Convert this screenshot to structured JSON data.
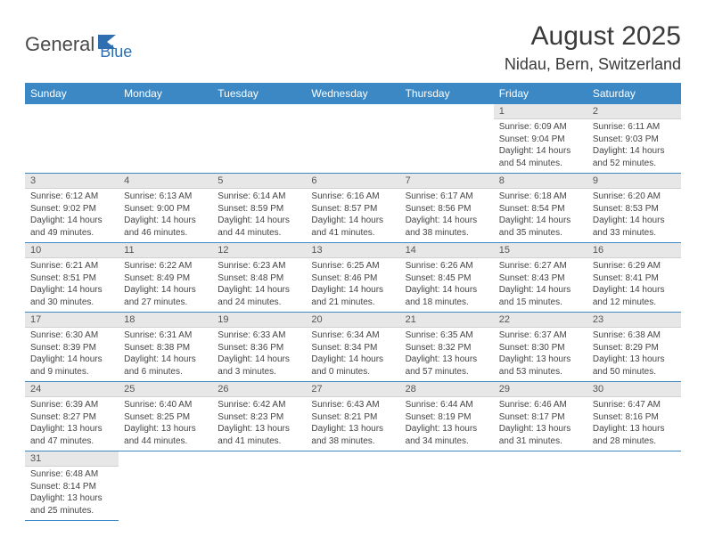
{
  "brand": {
    "part1": "General",
    "part2": "Blue"
  },
  "title": {
    "month": "August 2025",
    "location": "Nidau, Bern, Switzerland"
  },
  "colors": {
    "header_bg": "#3b88c5",
    "header_text": "#ffffff",
    "daynum_bg": "#e7e7e7",
    "rule": "#3b88c5",
    "text": "#3a3a3a",
    "logo_blue": "#2f6fb0"
  },
  "day_labels": [
    "Sunday",
    "Monday",
    "Tuesday",
    "Wednesday",
    "Thursday",
    "Friday",
    "Saturday"
  ],
  "weeks": [
    [
      null,
      null,
      null,
      null,
      null,
      {
        "n": "1",
        "sunrise": "6:09 AM",
        "sunset": "9:04 PM",
        "day_h": "14",
        "day_m": "54"
      },
      {
        "n": "2",
        "sunrise": "6:11 AM",
        "sunset": "9:03 PM",
        "day_h": "14",
        "day_m": "52"
      }
    ],
    [
      {
        "n": "3",
        "sunrise": "6:12 AM",
        "sunset": "9:02 PM",
        "day_h": "14",
        "day_m": "49"
      },
      {
        "n": "4",
        "sunrise": "6:13 AM",
        "sunset": "9:00 PM",
        "day_h": "14",
        "day_m": "46"
      },
      {
        "n": "5",
        "sunrise": "6:14 AM",
        "sunset": "8:59 PM",
        "day_h": "14",
        "day_m": "44"
      },
      {
        "n": "6",
        "sunrise": "6:16 AM",
        "sunset": "8:57 PM",
        "day_h": "14",
        "day_m": "41"
      },
      {
        "n": "7",
        "sunrise": "6:17 AM",
        "sunset": "8:56 PM",
        "day_h": "14",
        "day_m": "38"
      },
      {
        "n": "8",
        "sunrise": "6:18 AM",
        "sunset": "8:54 PM",
        "day_h": "14",
        "day_m": "35"
      },
      {
        "n": "9",
        "sunrise": "6:20 AM",
        "sunset": "8:53 PM",
        "day_h": "14",
        "day_m": "33"
      }
    ],
    [
      {
        "n": "10",
        "sunrise": "6:21 AM",
        "sunset": "8:51 PM",
        "day_h": "14",
        "day_m": "30"
      },
      {
        "n": "11",
        "sunrise": "6:22 AM",
        "sunset": "8:49 PM",
        "day_h": "14",
        "day_m": "27"
      },
      {
        "n": "12",
        "sunrise": "6:23 AM",
        "sunset": "8:48 PM",
        "day_h": "14",
        "day_m": "24"
      },
      {
        "n": "13",
        "sunrise": "6:25 AM",
        "sunset": "8:46 PM",
        "day_h": "14",
        "day_m": "21"
      },
      {
        "n": "14",
        "sunrise": "6:26 AM",
        "sunset": "8:45 PM",
        "day_h": "14",
        "day_m": "18"
      },
      {
        "n": "15",
        "sunrise": "6:27 AM",
        "sunset": "8:43 PM",
        "day_h": "14",
        "day_m": "15"
      },
      {
        "n": "16",
        "sunrise": "6:29 AM",
        "sunset": "8:41 PM",
        "day_h": "14",
        "day_m": "12"
      }
    ],
    [
      {
        "n": "17",
        "sunrise": "6:30 AM",
        "sunset": "8:39 PM",
        "day_h": "14",
        "day_m": "9"
      },
      {
        "n": "18",
        "sunrise": "6:31 AM",
        "sunset": "8:38 PM",
        "day_h": "14",
        "day_m": "6"
      },
      {
        "n": "19",
        "sunrise": "6:33 AM",
        "sunset": "8:36 PM",
        "day_h": "14",
        "day_m": "3"
      },
      {
        "n": "20",
        "sunrise": "6:34 AM",
        "sunset": "8:34 PM",
        "day_h": "14",
        "day_m": "0"
      },
      {
        "n": "21",
        "sunrise": "6:35 AM",
        "sunset": "8:32 PM",
        "day_h": "13",
        "day_m": "57"
      },
      {
        "n": "22",
        "sunrise": "6:37 AM",
        "sunset": "8:30 PM",
        "day_h": "13",
        "day_m": "53"
      },
      {
        "n": "23",
        "sunrise": "6:38 AM",
        "sunset": "8:29 PM",
        "day_h": "13",
        "day_m": "50"
      }
    ],
    [
      {
        "n": "24",
        "sunrise": "6:39 AM",
        "sunset": "8:27 PM",
        "day_h": "13",
        "day_m": "47"
      },
      {
        "n": "25",
        "sunrise": "6:40 AM",
        "sunset": "8:25 PM",
        "day_h": "13",
        "day_m": "44"
      },
      {
        "n": "26",
        "sunrise": "6:42 AM",
        "sunset": "8:23 PM",
        "day_h": "13",
        "day_m": "41"
      },
      {
        "n": "27",
        "sunrise": "6:43 AM",
        "sunset": "8:21 PM",
        "day_h": "13",
        "day_m": "38"
      },
      {
        "n": "28",
        "sunrise": "6:44 AM",
        "sunset": "8:19 PM",
        "day_h": "13",
        "day_m": "34"
      },
      {
        "n": "29",
        "sunrise": "6:46 AM",
        "sunset": "8:17 PM",
        "day_h": "13",
        "day_m": "31"
      },
      {
        "n": "30",
        "sunrise": "6:47 AM",
        "sunset": "8:16 PM",
        "day_h": "13",
        "day_m": "28"
      }
    ],
    [
      {
        "n": "31",
        "sunrise": "6:48 AM",
        "sunset": "8:14 PM",
        "day_h": "13",
        "day_m": "25"
      },
      null,
      null,
      null,
      null,
      null,
      null
    ]
  ]
}
